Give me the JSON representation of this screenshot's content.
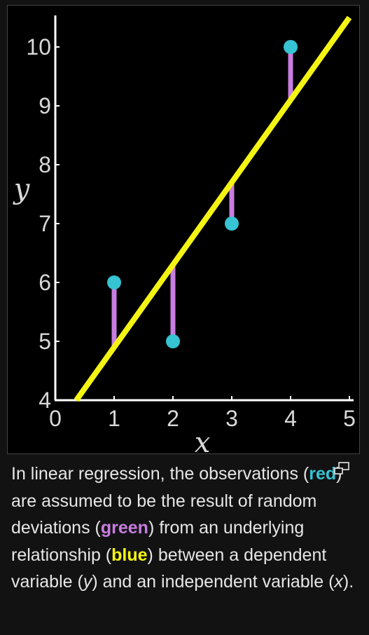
{
  "caption": {
    "p1": "In linear regression, the observations (",
    "red": "red",
    "p2": ") are assumed to be the result of random deviations (",
    "green": "green",
    "p3": ") from an underlying relationship (",
    "blue": "blue",
    "p4": ") between a dependent variable (",
    "y_var": "y",
    "p5": ") and an independent variable (",
    "x_var": "x",
    "p6": ")."
  },
  "enlarge_icon": "enlarge-icon",
  "colors": {
    "points": "#36c3d2",
    "residuals": "#c87de0",
    "fit_line": "#f4f414",
    "background": "#000000",
    "axis": "#ffffff"
  },
  "chart_data": {
    "type": "scatter",
    "title": "",
    "xlabel": "x",
    "ylabel": "y",
    "xlim": [
      0,
      5
    ],
    "ylim": [
      4,
      10.5
    ],
    "x_ticks": [
      "0",
      "1",
      "2",
      "3",
      "4",
      "5"
    ],
    "y_ticks": [
      "4",
      "5",
      "6",
      "7",
      "8",
      "9",
      "10"
    ],
    "grid": false,
    "points": [
      {
        "x": 1,
        "y": 6
      },
      {
        "x": 2,
        "y": 5
      },
      {
        "x": 3,
        "y": 7
      },
      {
        "x": 4,
        "y": 10
      }
    ],
    "fit_line": {
      "slope": 1.4,
      "intercept": 3.5
    },
    "residuals": [
      {
        "x": 1,
        "y_obs": 6,
        "y_fit": 4.9
      },
      {
        "x": 2,
        "y_obs": 5,
        "y_fit": 6.3
      },
      {
        "x": 3,
        "y_obs": 7,
        "y_fit": 7.7
      },
      {
        "x": 4,
        "y_obs": 10,
        "y_fit": 9.1
      }
    ]
  }
}
